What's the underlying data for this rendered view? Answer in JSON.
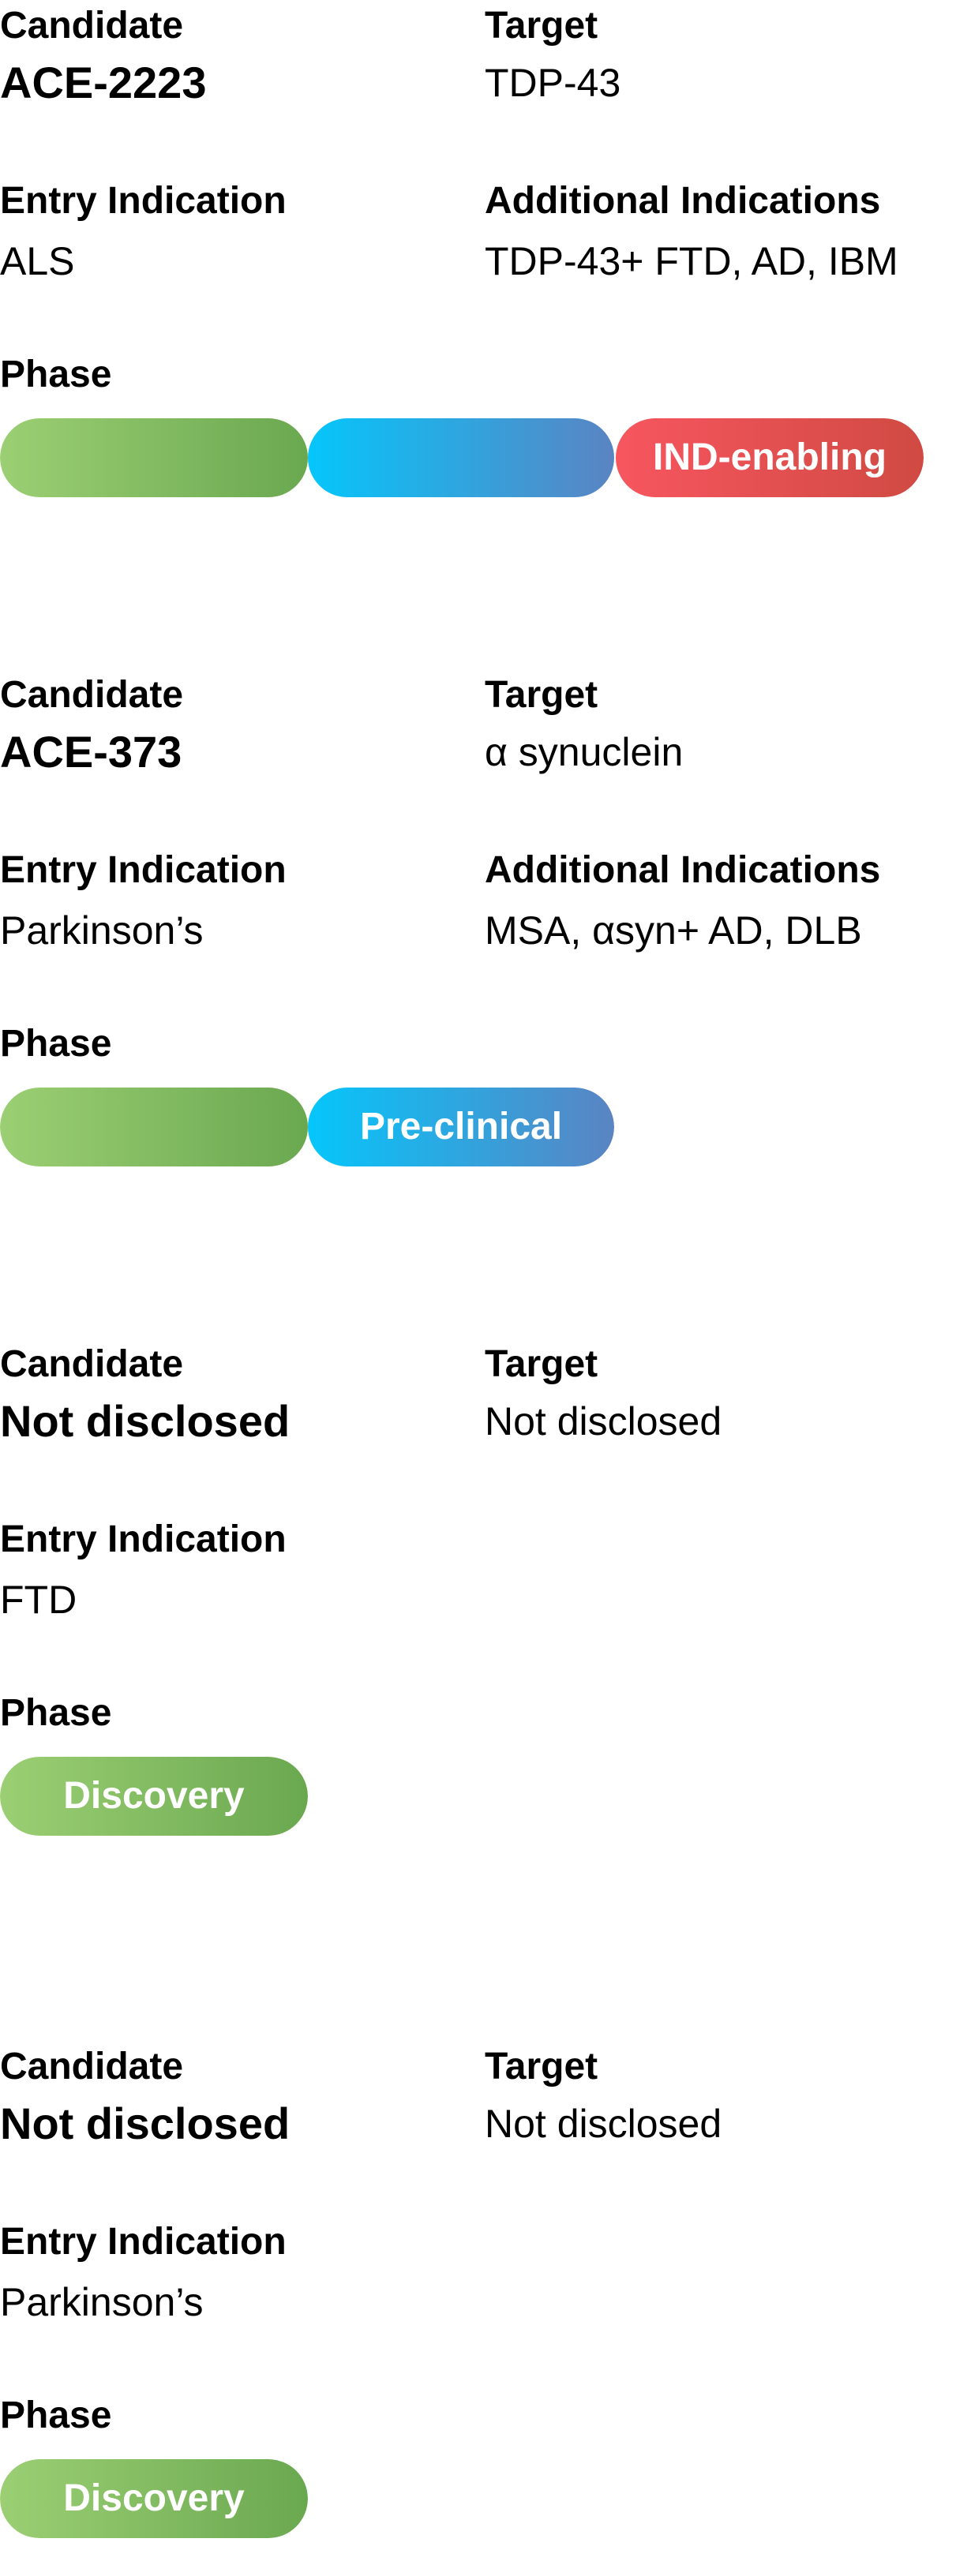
{
  "cards": [
    {
      "candidate_label": "Candidate",
      "candidate": "ACE-2223",
      "target_label": "Target",
      "target": "TDP-43",
      "entry_label": "Entry Indication",
      "entry": "ALS",
      "additional_label": "Additional Indications",
      "additional": "TDP-43+ FTD, AD, IBM",
      "phase_label": "Phase",
      "phase": "IND-enabling"
    },
    {
      "candidate_label": "Candidate",
      "candidate": "ACE-373",
      "target_label": "Target",
      "target": "α synuclein",
      "entry_label": "Entry Indication",
      "entry": "Parkinson’s",
      "additional_label": "Additional Indications",
      "additional": "MSA, αsyn+ AD, DLB",
      "phase_label": "Phase",
      "phase": "Pre-clinical"
    },
    {
      "candidate_label": "Candidate",
      "candidate": "Not disclosed",
      "target_label": "Target",
      "target": "Not disclosed",
      "entry_label": "Entry Indication",
      "entry": "FTD",
      "phase_label": "Phase",
      "phase": "Discovery"
    },
    {
      "candidate_label": "Candidate",
      "candidate": "Not disclosed",
      "target_label": "Target",
      "target": "Not disclosed",
      "entry_label": "Entry Indication",
      "entry": "Parkinson’s",
      "phase_label": "Phase",
      "phase": "Discovery"
    }
  ],
  "colors": {
    "discovery": "#7fbf5f",
    "preclinical": "#2aa8e8",
    "ind_enabling": "#e8504f"
  }
}
